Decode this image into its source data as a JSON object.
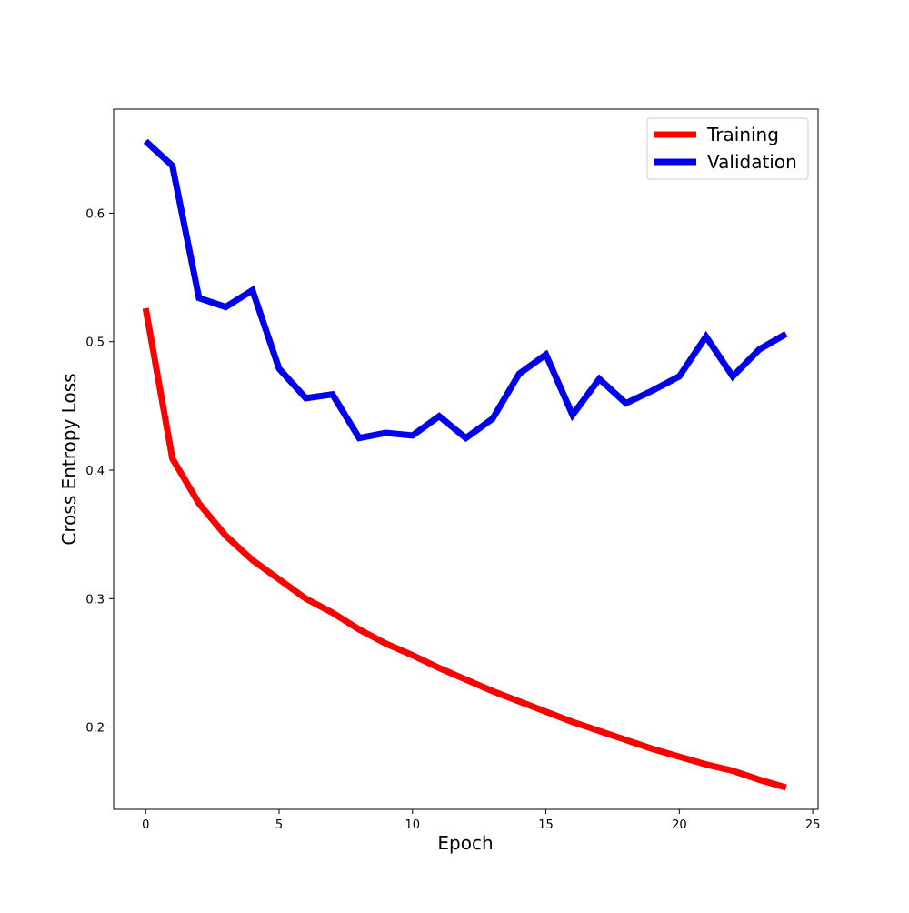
{
  "chart_data": {
    "type": "line",
    "title": "",
    "xlabel": "Epoch",
    "ylabel": "Cross Entropy Loss",
    "xlim": [
      -1.2,
      25.2
    ],
    "ylim": [
      0.136,
      0.681
    ],
    "xticks": [
      0,
      5,
      10,
      15,
      20,
      25
    ],
    "yticks": [
      0.2,
      0.3,
      0.4,
      0.5,
      0.6
    ],
    "grid": false,
    "legend_position": "top-right",
    "x": [
      0,
      1,
      2,
      3,
      4,
      5,
      6,
      7,
      8,
      9,
      10,
      11,
      12,
      13,
      14,
      15,
      16,
      17,
      18,
      19,
      20,
      21,
      22,
      23,
      24
    ],
    "series": [
      {
        "name": "Training",
        "color": "#ff0000",
        "values": [
          0.526,
          0.409,
          0.374,
          0.349,
          0.33,
          0.315,
          0.3,
          0.289,
          0.276,
          0.265,
          0.256,
          0.246,
          0.237,
          0.228,
          0.22,
          0.212,
          0.204,
          0.197,
          0.19,
          0.183,
          0.177,
          0.171,
          0.166,
          0.159,
          0.153
        ]
      },
      {
        "name": "Validation",
        "color": "#0000ee",
        "values": [
          0.656,
          0.637,
          0.534,
          0.527,
          0.54,
          0.479,
          0.456,
          0.459,
          0.425,
          0.429,
          0.427,
          0.442,
          0.425,
          0.44,
          0.475,
          0.49,
          0.443,
          0.471,
          0.452,
          0.462,
          0.473,
          0.504,
          0.473,
          0.494,
          0.506
        ]
      }
    ]
  }
}
